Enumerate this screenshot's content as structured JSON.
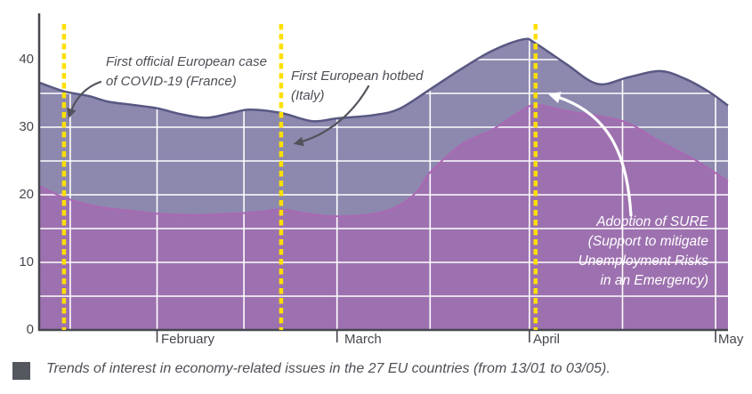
{
  "chart_data": {
    "type": "area",
    "title": "",
    "xlabel": "",
    "ylabel": "",
    "x_axis": {
      "unit": "days since 13/01/2020",
      "domain_days": [
        0,
        111
      ],
      "ticks": [
        {
          "day": 19,
          "label": "February"
        },
        {
          "day": 48,
          "label": "March"
        },
        {
          "day": 79,
          "label": "April"
        },
        {
          "day": 109,
          "label": "May"
        }
      ],
      "gridline_days": [
        5,
        19,
        33,
        48,
        63,
        79,
        94,
        109
      ]
    },
    "y_axis": {
      "ylim": [
        0,
        46.8
      ],
      "ticks": [
        {
          "value": 0,
          "label": "0"
        },
        {
          "value": 10,
          "label": "10"
        },
        {
          "value": 20,
          "label": "20"
        },
        {
          "value": 30,
          "label": "30"
        },
        {
          "value": 40,
          "label": "40"
        }
      ],
      "gridline_values": [
        5,
        10,
        15,
        20,
        25,
        30,
        35,
        40
      ]
    },
    "series": [
      {
        "name": "overall-interest-upper",
        "fill": "#8c88ae",
        "stroke": "#585883",
        "stroke_width": 2.5,
        "points": [
          [
            0,
            36.6
          ],
          [
            4,
            35.3
          ],
          [
            8,
            34.6
          ],
          [
            11,
            33.8
          ],
          [
            15,
            33.3
          ],
          [
            19,
            32.8
          ],
          [
            23,
            31.9
          ],
          [
            27,
            31.4
          ],
          [
            31,
            32.1
          ],
          [
            34,
            32.6
          ],
          [
            39,
            32.1
          ],
          [
            44,
            30.9
          ],
          [
            48,
            31.3
          ],
          [
            54,
            31.8
          ],
          [
            58,
            32.7
          ],
          [
            63,
            35.6
          ],
          [
            68,
            38.6
          ],
          [
            73,
            41.3
          ],
          [
            78,
            43.0
          ],
          [
            80,
            42.4
          ],
          [
            85,
            39.3
          ],
          [
            90,
            36.4
          ],
          [
            95,
            37.4
          ],
          [
            100,
            38.3
          ],
          [
            104,
            37.2
          ],
          [
            108,
            35.2
          ],
          [
            111,
            33.2
          ]
        ]
      },
      {
        "name": "economy-interest-lower",
        "fill": "#9d71af",
        "stroke": "#aa68b4",
        "stroke_width": 2,
        "points": [
          [
            0,
            21.3
          ],
          [
            4,
            19.6
          ],
          [
            9,
            18.3
          ],
          [
            14,
            17.7
          ],
          [
            19,
            17.2
          ],
          [
            25,
            17.0
          ],
          [
            31,
            17.2
          ],
          [
            36,
            17.5
          ],
          [
            39,
            17.8
          ],
          [
            44,
            17.1
          ],
          [
            48,
            16.8
          ],
          [
            54,
            17.2
          ],
          [
            58,
            18.4
          ],
          [
            61,
            20.6
          ],
          [
            63,
            23.3
          ],
          [
            68,
            27.4
          ],
          [
            73,
            29.6
          ],
          [
            77,
            32.0
          ],
          [
            80,
            33.3
          ],
          [
            85,
            32.4
          ],
          [
            94,
            30.9
          ],
          [
            100,
            27.9
          ],
          [
            106,
            25.0
          ],
          [
            111,
            22.0
          ]
        ]
      }
    ],
    "event_lines": {
      "color": "#fee000",
      "days": [
        4,
        39,
        80
      ]
    },
    "annotations": [
      {
        "id": "france",
        "lines": [
          "First official European case",
          "of COVID-19 (France)"
        ],
        "color": "#4e4e57",
        "align": "left"
      },
      {
        "id": "italy",
        "lines": [
          "First European hotbed",
          "(Italy)"
        ],
        "color": "#4e4e57",
        "align": "left"
      },
      {
        "id": "sure",
        "lines": [
          "Adoption of SURE",
          "(Support to mitigate",
          "Unemployment Risks",
          "in an Emergency)"
        ],
        "color": "#ffffff",
        "align": "right"
      }
    ],
    "arrow_colors": {
      "gray": "#53535c",
      "white": "#ffffff"
    },
    "grid_color": "#ffffff",
    "axis_color": "#47474f",
    "legend_position": "none"
  },
  "caption": {
    "text": "Trends of interest in economy-related issues in the 27 EU countries (from 13/01 to 03/05).",
    "bullet_color": "#55575f"
  }
}
